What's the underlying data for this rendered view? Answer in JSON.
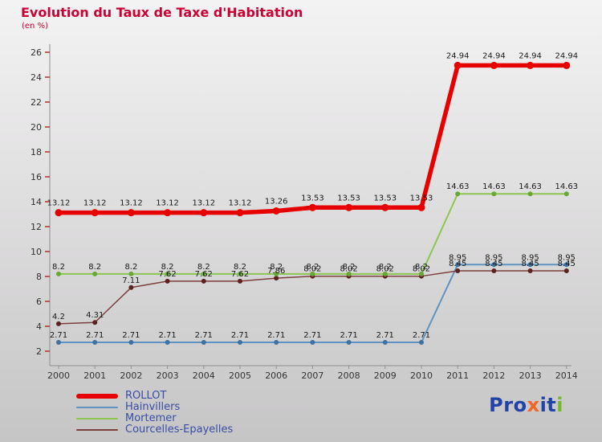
{
  "page": {
    "title": "Evolution du Taux de Taxe d'Habitation",
    "subtitle": "(en %)"
  },
  "theme": {
    "title_color": "#cc0033",
    "axis_color": "#8f8f8f",
    "tick_color": "#b03030",
    "label_color": "#1a1a1a",
    "axis_text_color": "#333333",
    "legend_text_color": "#3a4da6",
    "background_top": "#f4f3f4",
    "background_bottom": "#c6c5c6"
  },
  "logo": {
    "text": "Proxiti",
    "parts": [
      {
        "text": "Pro",
        "color": "#2242a8"
      },
      {
        "text": "x",
        "color": "#f26522"
      },
      {
        "text": "it",
        "color": "#2242a8"
      },
      {
        "text": "i",
        "color": "#76b82a"
      }
    ]
  },
  "chart_data": {
    "type": "line",
    "title": "Evolution du Taux de Taxe d'Habitation",
    "subtitle": "(en %)",
    "x": [
      2000,
      2001,
      2002,
      2003,
      2004,
      2005,
      2006,
      2007,
      2008,
      2009,
      2010,
      2011,
      2012,
      2013,
      2014
    ],
    "xlabel": "",
    "ylabel": "en %",
    "ylim": [
      2,
      26
    ],
    "ytick_step": 2,
    "grid": false,
    "legend_position": "bottom-left",
    "series": [
      {
        "name": "ROLLOT",
        "color": "#e60000",
        "dot_color": "#e60000",
        "line_width": 5.5,
        "dot_radius": 4.5,
        "label_dy": 9,
        "legend_thickness": 6,
        "values": [
          13.12,
          13.12,
          13.12,
          13.12,
          13.12,
          13.12,
          13.26,
          13.53,
          13.53,
          13.53,
          13.53,
          24.94,
          24.94,
          24.94,
          24.94
        ]
      },
      {
        "name": "Hainvillers",
        "color": "#5f93c0",
        "dot_color": "#3f72a0",
        "line_width": 2,
        "dot_radius": 3,
        "label_dy": 6,
        "legend_thickness": 2,
        "values": [
          2.71,
          2.71,
          2.71,
          2.71,
          2.71,
          2.71,
          2.71,
          2.71,
          2.71,
          2.71,
          2.71,
          8.95,
          8.95,
          8.95,
          8.95
        ]
      },
      {
        "name": "Mortemer",
        "color": "#8cc652",
        "dot_color": "#6aa836",
        "line_width": 2,
        "dot_radius": 3,
        "label_dy": 6,
        "legend_thickness": 2,
        "values": [
          8.2,
          8.2,
          8.2,
          8.2,
          8.2,
          8.2,
          8.2,
          8.2,
          8.2,
          8.2,
          8.2,
          14.63,
          14.63,
          14.63,
          14.63
        ]
      },
      {
        "name": "Courcelles-Epayelles",
        "color": "#7e3f3f",
        "dot_color": "#5c2222",
        "line_width": 1.5,
        "dot_radius": 3,
        "label_dy": 6,
        "legend_thickness": 2,
        "values": [
          4.2,
          4.31,
          7.11,
          7.62,
          7.62,
          7.62,
          7.86,
          8.02,
          8.02,
          8.02,
          8.02,
          8.45,
          8.45,
          8.45,
          8.45
        ]
      }
    ]
  }
}
